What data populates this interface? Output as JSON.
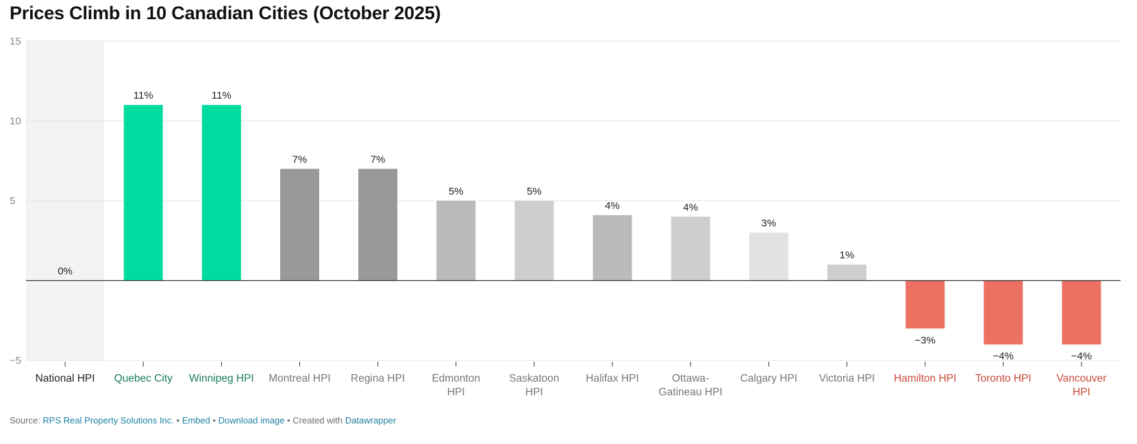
{
  "title": "Prices Climb in 10 Canadian Cities (October 2025)",
  "footer": {
    "source_prefix": "Source: ",
    "source_link": "RPS Real Property Solutions Inc.",
    "sep1": " • ",
    "embed": "Embed",
    "sep2": "  • ",
    "download": "Download image",
    "sep3": " • Created with ",
    "datawrapper": "Datawrapper"
  },
  "colors": {
    "green": "#00db9f",
    "dark_gray": "#999999",
    "mid_gray": "#bababa",
    "light_gray": "#cdcecd",
    "lightest_gray": "#e2e2e2",
    "red": "#ec7162",
    "green_label": "#1a7f5a",
    "red_label": "#c94a3b",
    "gray_label": "#777777",
    "black_label": "#222222",
    "highlight_bg": "#f3f3f3"
  },
  "chart_data": {
    "type": "bar",
    "title": "Prices Climb in 10 Canadian Cities (October 2025)",
    "ylim": [
      -5,
      15
    ],
    "yticks": [
      "15",
      "10",
      "5",
      "−5"
    ],
    "ytick_values": [
      15,
      10,
      5,
      -5
    ],
    "grid": true,
    "categories": [
      {
        "lines": [
          "National HPI"
        ],
        "label_color": "black"
      },
      {
        "lines": [
          "Quebec City"
        ],
        "label_color": "green"
      },
      {
        "lines": [
          "Winnipeg HPI"
        ],
        "label_color": "green"
      },
      {
        "lines": [
          "Montreal HPI"
        ],
        "label_color": "gray"
      },
      {
        "lines": [
          "Regina HPI"
        ],
        "label_color": "gray"
      },
      {
        "lines": [
          "Edmonton",
          "HPI"
        ],
        "label_color": "gray"
      },
      {
        "lines": [
          "Saskatoon",
          "HPI"
        ],
        "label_color": "gray"
      },
      {
        "lines": [
          "Halifax HPI"
        ],
        "label_color": "gray"
      },
      {
        "lines": [
          "Ottawa-",
          "Gatineau HPI"
        ],
        "label_color": "gray"
      },
      {
        "lines": [
          "Calgary HPI"
        ],
        "label_color": "gray"
      },
      {
        "lines": [
          "Victoria HPI"
        ],
        "label_color": "gray"
      },
      {
        "lines": [
          "Hamilton HPI"
        ],
        "label_color": "red"
      },
      {
        "lines": [
          "Toronto HPI"
        ],
        "label_color": "red"
      },
      {
        "lines": [
          "Vancouver",
          "HPI"
        ],
        "label_color": "red"
      }
    ],
    "values": [
      0,
      11,
      11,
      7,
      7,
      5,
      5,
      4.1,
      4,
      3,
      1,
      -3,
      -4,
      -4
    ],
    "value_labels": [
      "0%",
      "11%",
      "11%",
      "7%",
      "7%",
      "5%",
      "5%",
      "4%",
      "4%",
      "3%",
      "1%",
      "−3%",
      "−4%",
      "−4%"
    ],
    "bar_colors": [
      "green",
      "green",
      "green",
      "dark_gray",
      "dark_gray",
      "mid_gray",
      "light_gray",
      "mid_gray",
      "light_gray",
      "lightest_gray",
      "light_gray",
      "red",
      "red",
      "red"
    ],
    "highlight_category": 0
  }
}
